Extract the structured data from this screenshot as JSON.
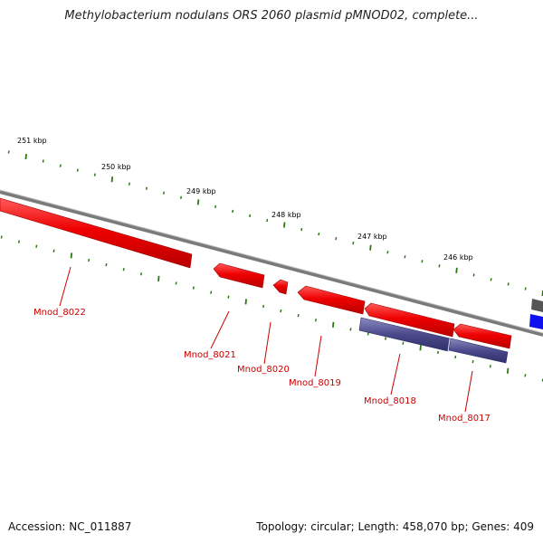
{
  "title": "Methylobacterium nodulans ORS 2060 plasmid pMNOD02, complete...",
  "footer": {
    "accession": "Accession: NC_011887",
    "summary": "Topology: circular; Length: 458,070 bp; Genes: 409"
  },
  "kbp_labels": [
    "251 kbp",
    "250 kbp",
    "249 kbp",
    "248 kbp",
    "247 kbp",
    "246 kbp"
  ],
  "genes": [
    {
      "name": "Mnod_8022",
      "strand": "reverse",
      "color": "#ee0000"
    },
    {
      "name": "Mnod_8021",
      "strand": "reverse",
      "color": "#ee0000"
    },
    {
      "name": "Mnod_8020",
      "strand": "reverse",
      "color": "#ee0000"
    },
    {
      "name": "Mnod_8019",
      "strand": "reverse",
      "color": "#ee0000"
    },
    {
      "name": "Mnod_8018",
      "strand": "reverse",
      "color": "#ee0000"
    },
    {
      "name": "Mnod_8017",
      "strand": "reverse",
      "color": "#ee0000"
    }
  ],
  "colors": {
    "cds": "#ee0000",
    "feature_track": "#4a4a8c",
    "backbone": "#808080",
    "ticks": "#2a7a10",
    "gene_label": "#cc0000",
    "other_feature": "#1010ee"
  }
}
